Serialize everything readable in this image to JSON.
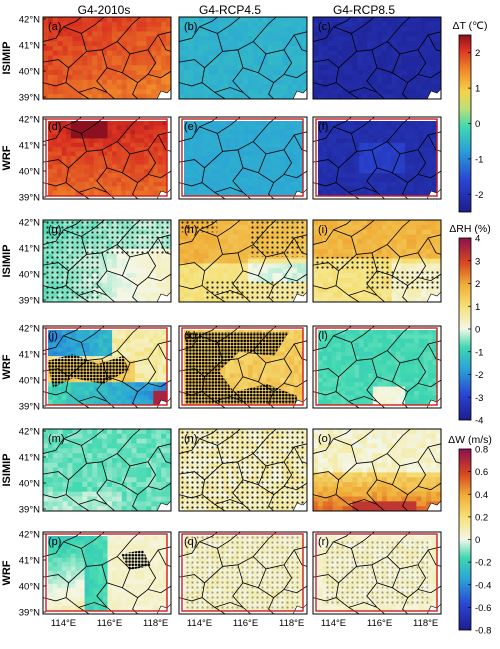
{
  "figure": {
    "columns": [
      "G4-2010s",
      "G4-RCP4.5",
      "G4-RCP8.5"
    ],
    "row_labels": [
      "ISIMIP",
      "WRF",
      "ISIMIP",
      "WRF",
      "ISIMIP",
      "WRF"
    ],
    "panel_letters": [
      "(a)",
      "(b)",
      "(c)",
      "(d)",
      "(e)",
      "(f)",
      "(g)",
      "(h)",
      "(i)",
      "(j)",
      "(k)",
      "(l)",
      "(m)",
      "(n)",
      "(o)",
      "(p)",
      "(q)",
      "(r)"
    ],
    "lat_ticks": [
      "42°N",
      "41°N",
      "40°N",
      "39°N"
    ],
    "lon_ticks": [
      "114°E",
      "116°E",
      "118°E"
    ]
  },
  "chart_data": [
    {
      "type": "heatmap",
      "variable": "ΔT (℃)",
      "colorbar_label": "ΔT (℃)",
      "colorbar_ticks": [
        -2,
        -1,
        0,
        1,
        2
      ],
      "range": [
        -2.5,
        2.5
      ],
      "panels": [
        {
          "letter": "(a)",
          "source": "ISIMIP",
          "scenario": "G4-2010s",
          "mean": 1.9
        },
        {
          "letter": "(b)",
          "source": "ISIMIP",
          "scenario": "G4-RCP4.5",
          "mean": -0.6
        },
        {
          "letter": "(c)",
          "source": "ISIMIP",
          "scenario": "G4-RCP8.5",
          "mean": -2.2
        },
        {
          "letter": "(d)",
          "source": "WRF",
          "scenario": "G4-2010s",
          "mean": 1.9
        },
        {
          "letter": "(e)",
          "source": "WRF",
          "scenario": "G4-RCP4.5",
          "mean": -0.7
        },
        {
          "letter": "(f)",
          "source": "WRF",
          "scenario": "G4-RCP8.5",
          "mean": -2.1
        }
      ]
    },
    {
      "type": "heatmap",
      "variable": "ΔRH (%)",
      "colorbar_label": "ΔRH (%)",
      "colorbar_ticks": [
        -4,
        -3,
        -2,
        -1,
        0,
        1,
        2,
        3,
        4
      ],
      "range": [
        -4,
        4
      ],
      "panels": [
        {
          "letter": "(g)",
          "source": "ISIMIP",
          "scenario": "G4-2010s",
          "mean": -0.2
        },
        {
          "letter": "(h)",
          "source": "ISIMIP",
          "scenario": "G4-RCP4.5",
          "mean": 0.9
        },
        {
          "letter": "(i)",
          "source": "ISIMIP",
          "scenario": "G4-RCP8.5",
          "mean": 0.8
        },
        {
          "letter": "(j)",
          "source": "WRF",
          "scenario": "G4-2010s",
          "mean": 0.4
        },
        {
          "letter": "(k)",
          "source": "WRF",
          "scenario": "G4-RCP4.5",
          "mean": 1.2
        },
        {
          "letter": "(l)",
          "source": "WRF",
          "scenario": "G4-RCP8.5",
          "mean": -0.6
        }
      ]
    },
    {
      "type": "heatmap",
      "variable": "ΔW (m/s)",
      "colorbar_label": "ΔW (m/s)",
      "colorbar_ticks": [
        -0.8,
        -0.6,
        -0.4,
        -0.2,
        0,
        0.2,
        0.4,
        0.6,
        0.8
      ],
      "range": [
        -0.8,
        0.8
      ],
      "panels": [
        {
          "letter": "(m)",
          "source": "ISIMIP",
          "scenario": "G4-2010s",
          "mean": -0.15
        },
        {
          "letter": "(n)",
          "source": "ISIMIP",
          "scenario": "G4-RCP4.5",
          "mean": 0.1
        },
        {
          "letter": "(o)",
          "source": "ISIMIP",
          "scenario": "G4-RCP8.5",
          "mean": 0.25
        },
        {
          "letter": "(p)",
          "source": "WRF",
          "scenario": "G4-2010s",
          "mean": -0.1
        },
        {
          "letter": "(q)",
          "source": "WRF",
          "scenario": "G4-RCP4.5",
          "mean": 0.05
        },
        {
          "letter": "(r)",
          "source": "WRF",
          "scenario": "G4-RCP8.5",
          "mean": 0.05
        }
      ]
    }
  ]
}
